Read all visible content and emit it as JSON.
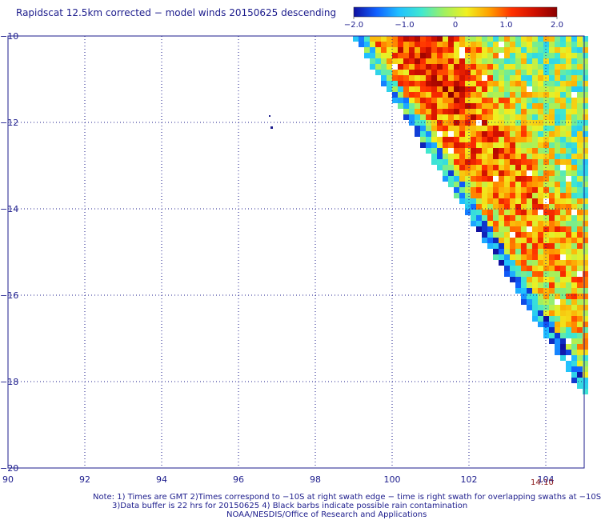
{
  "title": "Rapidscat 12.5km corrected − model winds 20150625 descending",
  "colorbar": {
    "ticks": [
      "−2.0",
      "−1.0",
      "0",
      "1.0",
      "2.0"
    ],
    "stops": [
      "#1010a0",
      "#1060ff",
      "#20c0ff",
      "#40e8d0",
      "#a0f060",
      "#f0f020",
      "#ffa000",
      "#ff3000",
      "#d01000",
      "#8b0000"
    ]
  },
  "chart_data": {
    "type": "heatmap",
    "x_ticks": [
      "90",
      "92",
      "94",
      "96",
      "98",
      "100",
      "102",
      "104"
    ],
    "y_ticks": [
      "−10",
      "−12",
      "−14",
      "−16",
      "−18",
      "−20"
    ],
    "xlim": [
      90,
      105
    ],
    "ylim": [
      -20,
      -10
    ],
    "grid": true,
    "value_range": [
      -2.0,
      2.0
    ]
  },
  "time_label": "14:10",
  "notes": {
    "line1": "Note: 1) Times are GMT 2)Times correspond to −10S at right swath edge − time is right swath for overlapping swaths at −10S",
    "line2": "3)Data buffer is 22 hrs for 20150625 4) Black barbs indicate possible rain contamination",
    "line3": "NOAA/NESDIS/Office of Research and Applications"
  }
}
